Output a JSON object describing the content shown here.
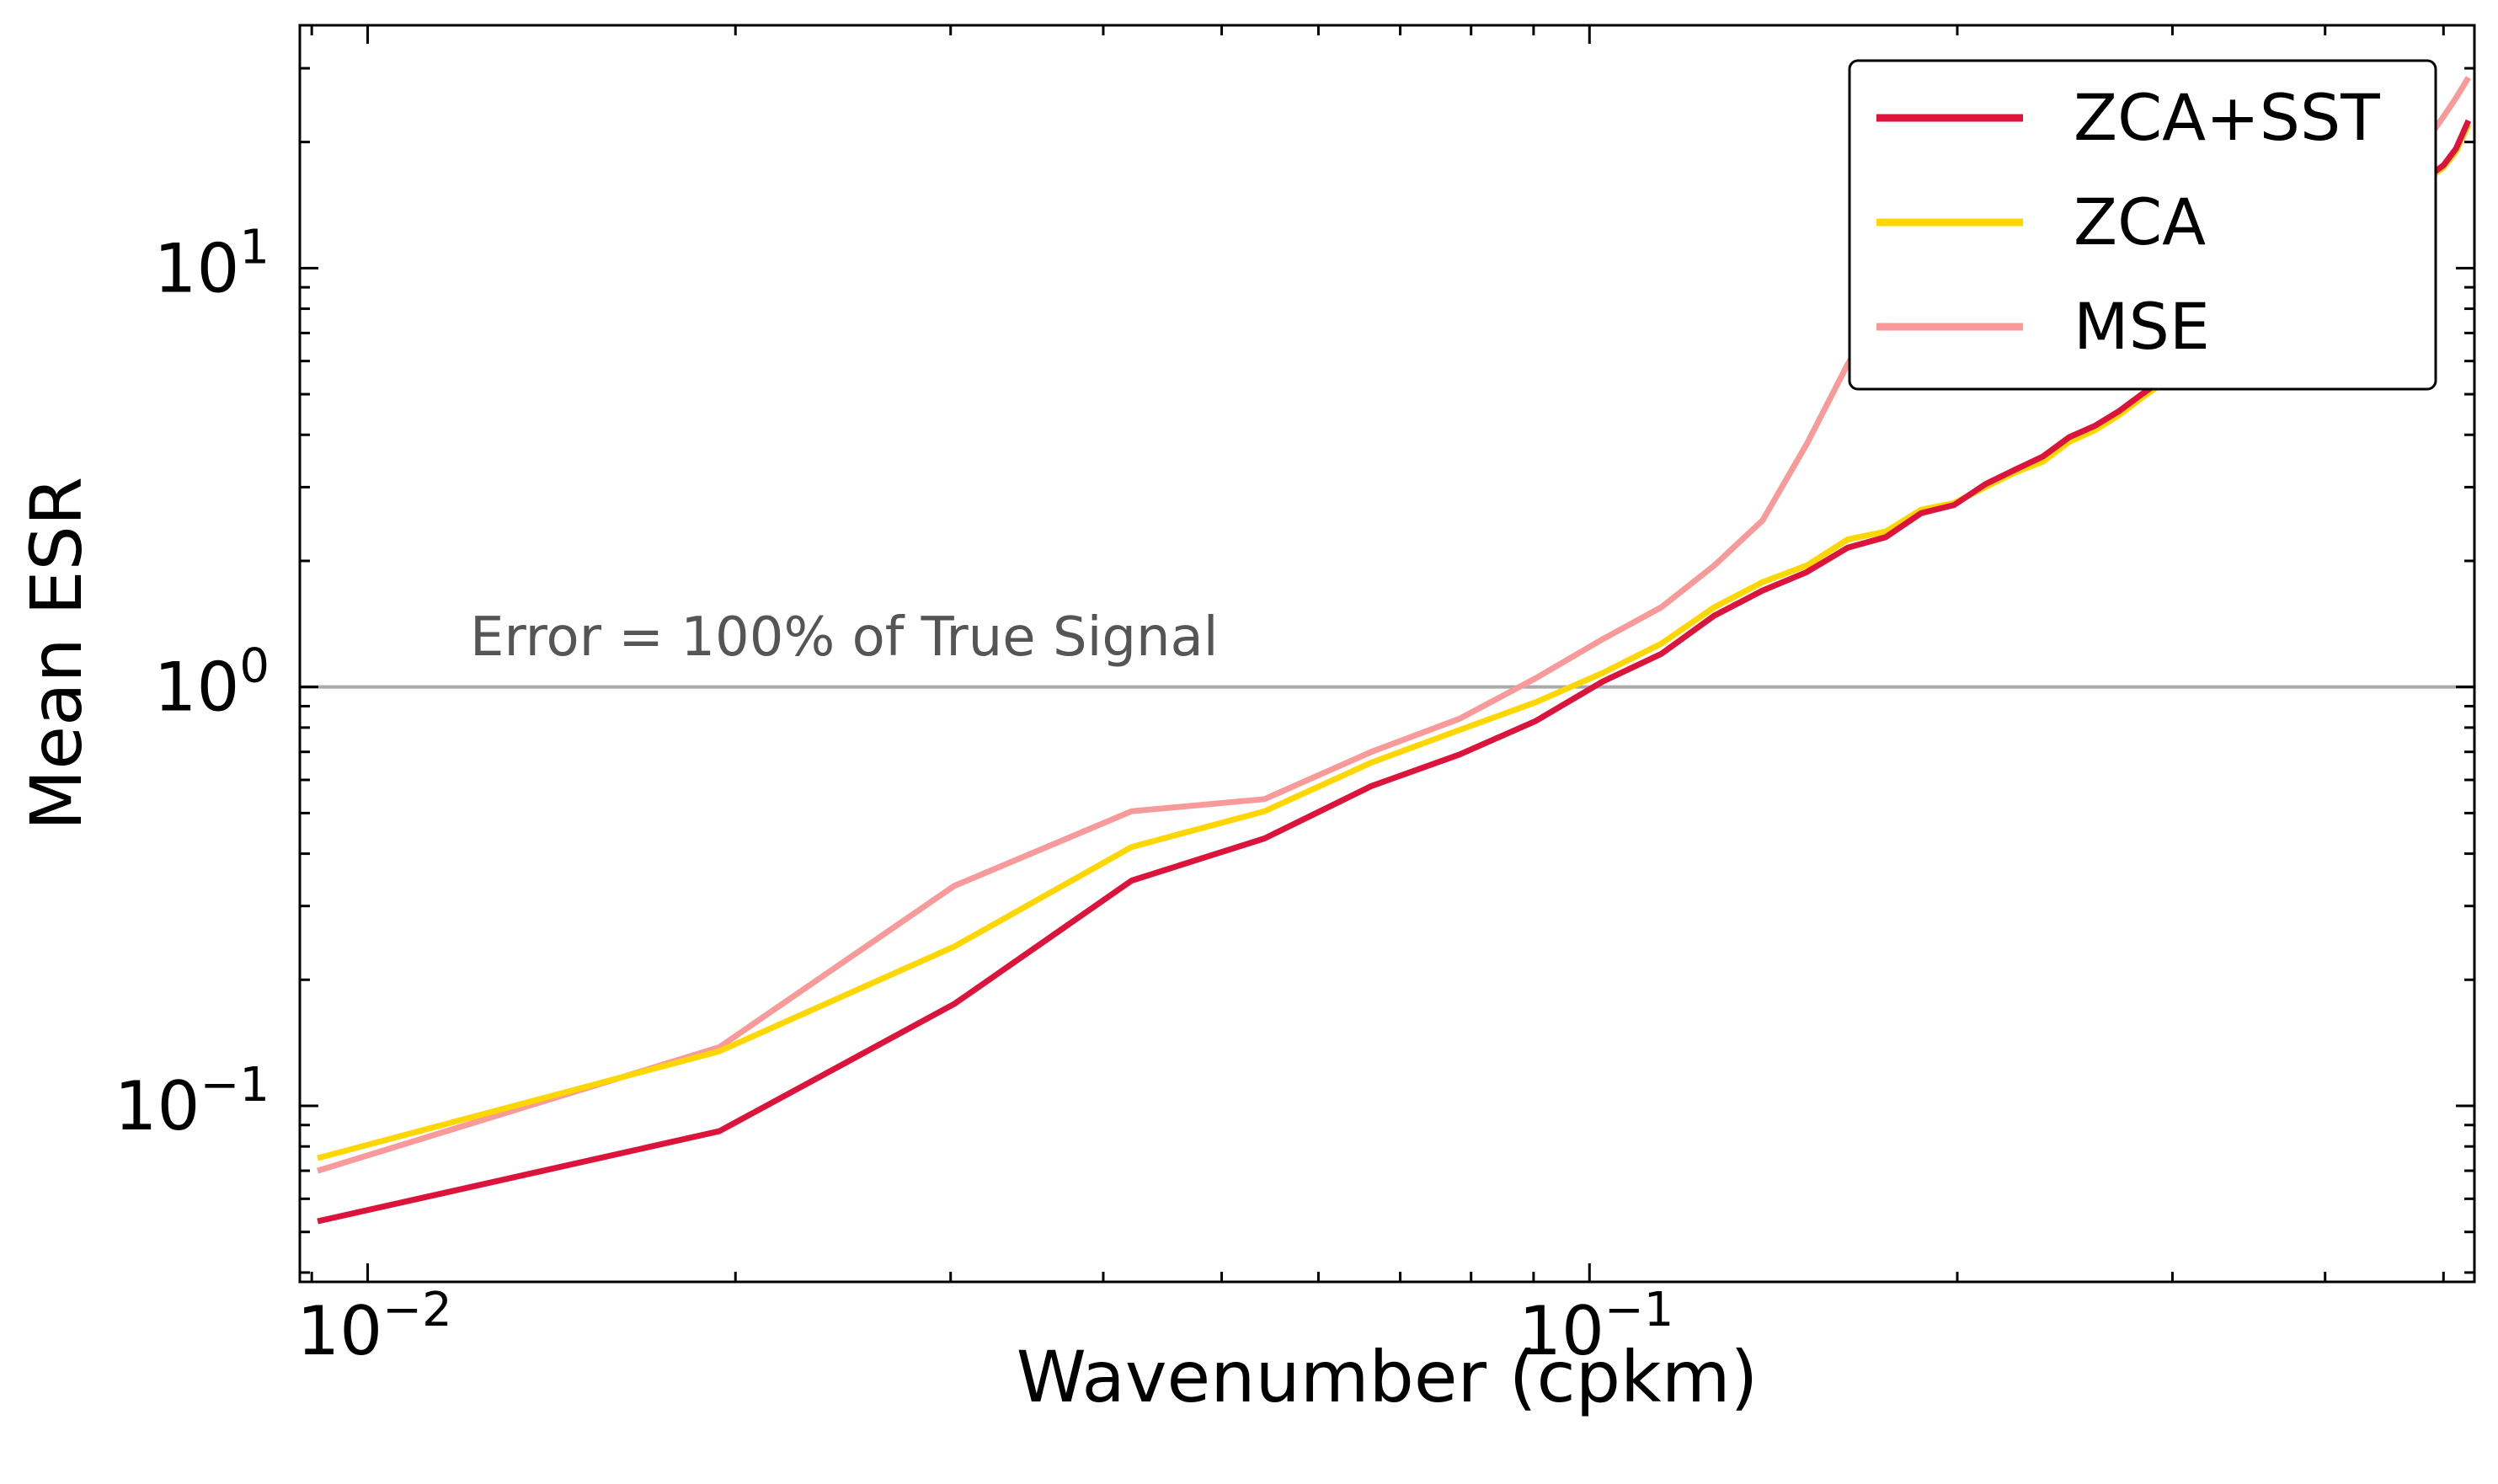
{
  "chart_data": {
    "type": "line",
    "title": "",
    "xlabel": "Wavenumber (cpkm)",
    "ylabel": "Mean ESR",
    "xscale": "log",
    "yscale": "log",
    "xlim": [
      0.0088,
      0.53
    ],
    "ylim": [
      0.038,
      38
    ],
    "x_major_ticks": [
      {
        "value": 0.01,
        "base": "10",
        "exp": "−2"
      },
      {
        "value": 0.1,
        "base": "10",
        "exp": "−1"
      }
    ],
    "y_major_ticks": [
      {
        "value": 0.1,
        "base": "10",
        "exp": "−1"
      },
      {
        "value": 1,
        "base": "10",
        "exp": "0"
      },
      {
        "value": 10,
        "base": "10",
        "exp": "1"
      }
    ],
    "grid": false,
    "legend_position": "top-right",
    "reference_line": {
      "y": 1.0,
      "label": "Error = 100% of True Signal",
      "color": "#aaaaaa"
    },
    "series": [
      {
        "name": "MSE",
        "color": "#f89a9a",
        "x": [
          0.0091,
          0.0194,
          0.0302,
          0.0422,
          0.0542,
          0.0663,
          0.0783,
          0.0904,
          0.1025,
          0.1145,
          0.1265,
          0.1386,
          0.1506,
          0.1627,
          0.1748,
          0.1868,
          0.1988,
          0.2109,
          0.2229,
          0.235,
          0.247,
          0.2591,
          0.2711,
          0.2832,
          0.2952,
          0.3073,
          0.3193,
          0.3314,
          0.3434,
          0.3555,
          0.3675,
          0.3796,
          0.3916,
          0.4036,
          0.4157,
          0.4277,
          0.4398,
          0.4518,
          0.4639,
          0.4759,
          0.488,
          0.5,
          0.512,
          0.5241
        ],
        "values": [
          0.07,
          0.138,
          0.335,
          0.505,
          0.54,
          0.7,
          0.84,
          1.05,
          1.3,
          1.55,
          1.95,
          2.5,
          3.8,
          5.9,
          8.3,
          9.7,
          10.0,
          9.8,
          9.1,
          8.2,
          7.3,
          6.8,
          6.4,
          6.2,
          6.3,
          6.5,
          6.9,
          7.4,
          8.0,
          8.7,
          9.6,
          10.6,
          11.0,
          10.6,
          11.8,
          13.2,
          14.3,
          15.6,
          17.1,
          18.9,
          20.8,
          23.0,
          25.5,
          28.5
        ]
      },
      {
        "name": "ZCA",
        "color": "#ffd700",
        "x": [
          0.0091,
          0.0194,
          0.0302,
          0.0422,
          0.0542,
          0.0663,
          0.0783,
          0.0904,
          0.1025,
          0.1145,
          0.1265,
          0.1386,
          0.1506,
          0.1627,
          0.1748,
          0.1868,
          0.1988,
          0.2109,
          0.2229,
          0.235,
          0.247,
          0.2591,
          0.2711,
          0.2832,
          0.2952,
          0.3073,
          0.3193,
          0.3314,
          0.3434,
          0.3555,
          0.3675,
          0.3796,
          0.3916,
          0.4036,
          0.4157,
          0.4277,
          0.4398,
          0.4518,
          0.4639,
          0.4759,
          0.488,
          0.5,
          0.512,
          0.5241
        ],
        "values": [
          0.075,
          0.135,
          0.24,
          0.415,
          0.505,
          0.66,
          0.79,
          0.92,
          1.08,
          1.27,
          1.55,
          1.78,
          1.95,
          2.25,
          2.35,
          2.65,
          2.75,
          3.0,
          3.25,
          3.45,
          3.85,
          4.1,
          4.45,
          4.9,
          5.35,
          5.85,
          6.3,
          6.8,
          7.3,
          7.8,
          8.5,
          9.3,
          10.1,
          10.6,
          11.3,
          12.1,
          13.0,
          13.8,
          14.9,
          15.9,
          16.5,
          17.4,
          19.0,
          22.0
        ]
      },
      {
        "name": "ZCA+SST",
        "color": "#dc143c",
        "x": [
          0.0091,
          0.0194,
          0.0302,
          0.0422,
          0.0542,
          0.0663,
          0.0783,
          0.0904,
          0.1025,
          0.1145,
          0.1265,
          0.1386,
          0.1506,
          0.1627,
          0.1748,
          0.1868,
          0.1988,
          0.2109,
          0.2229,
          0.235,
          0.247,
          0.2591,
          0.2711,
          0.2832,
          0.2952,
          0.3073,
          0.3193,
          0.3314,
          0.3434,
          0.3555,
          0.3675,
          0.3796,
          0.3916,
          0.4036,
          0.4157,
          0.4277,
          0.4398,
          0.4518,
          0.4639,
          0.4759,
          0.488,
          0.5,
          0.512,
          0.5241
        ],
        "values": [
          0.053,
          0.087,
          0.175,
          0.345,
          0.435,
          0.58,
          0.69,
          0.83,
          1.03,
          1.2,
          1.48,
          1.7,
          1.88,
          2.15,
          2.28,
          2.6,
          2.72,
          3.05,
          3.3,
          3.55,
          3.95,
          4.2,
          4.55,
          5.0,
          5.45,
          5.95,
          6.4,
          6.9,
          7.4,
          7.9,
          8.6,
          9.4,
          10.2,
          10.7,
          11.4,
          12.2,
          13.1,
          14.0,
          15.0,
          16.0,
          16.7,
          17.6,
          19.3,
          22.5
        ]
      }
    ]
  }
}
